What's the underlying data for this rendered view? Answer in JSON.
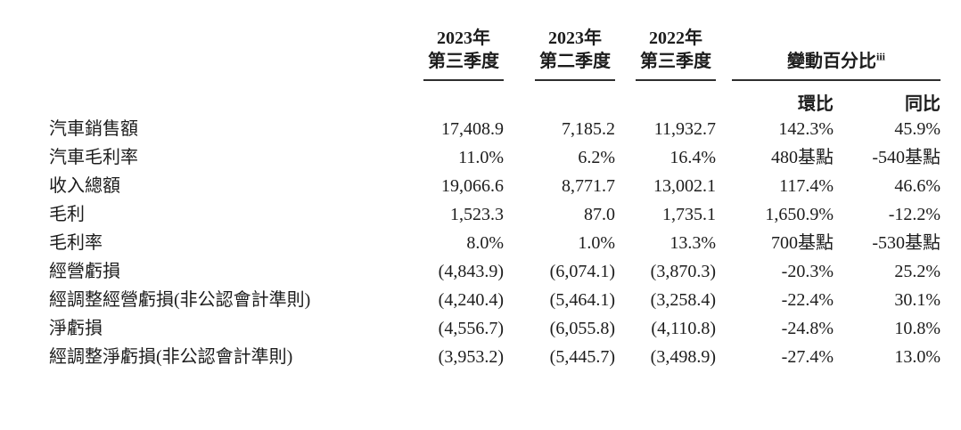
{
  "table": {
    "period_headers": [
      {
        "line1": "2023年",
        "line2": "第三季度"
      },
      {
        "line1": "2023年",
        "line2": "第二季度"
      },
      {
        "line1": "2022年",
        "line2": "第三季度"
      }
    ],
    "change_header": {
      "label": "變動百分比",
      "superscript": "iii",
      "sub_columns": [
        "環比",
        "同比"
      ]
    },
    "rows": [
      {
        "label": "汽車銷售額",
        "q3_2023": "17,408.9",
        "q2_2023": "7,185.2",
        "q3_2022": "11,932.7",
        "qoq": "142.3%",
        "yoy": "45.9%"
      },
      {
        "label": "汽車毛利率",
        "q3_2023": "11.0%",
        "q2_2023": "6.2%",
        "q3_2022": "16.4%",
        "qoq": "480基點",
        "yoy": "-540基點"
      },
      {
        "label": "收入總額",
        "q3_2023": "19,066.6",
        "q2_2023": "8,771.7",
        "q3_2022": "13,002.1",
        "qoq": "117.4%",
        "yoy": "46.6%"
      },
      {
        "label": "毛利",
        "q3_2023": "1,523.3",
        "q2_2023": "87.0",
        "q3_2022": "1,735.1",
        "qoq": "1,650.9%",
        "yoy": "-12.2%"
      },
      {
        "label": "毛利率",
        "q3_2023": "8.0%",
        "q2_2023": "1.0%",
        "q3_2022": "13.3%",
        "qoq": "700基點",
        "yoy": "-530基點"
      },
      {
        "label": "經營虧損",
        "q3_2023": "(4,843.9)",
        "q2_2023": "(6,074.1)",
        "q3_2022": "(3,870.3)",
        "qoq": "-20.3%",
        "yoy": "25.2%"
      },
      {
        "label": "經調整經營虧損(非公認會計準則)",
        "q3_2023": "(4,240.4)",
        "q2_2023": "(5,464.1)",
        "q3_2022": "(3,258.4)",
        "qoq": "-22.4%",
        "yoy": "30.1%"
      },
      {
        "label": "淨虧損",
        "q3_2023": "(4,556.7)",
        "q2_2023": "(6,055.8)",
        "q3_2022": "(4,110.8)",
        "qoq": "-24.8%",
        "yoy": "10.8%"
      },
      {
        "label": "經調整淨虧損(非公認會計準則)",
        "q3_2023": "(3,953.2)",
        "q2_2023": "(5,445.7)",
        "q3_2022": "(3,498.9)",
        "qoq": "-27.4%",
        "yoy": "13.0%"
      }
    ]
  }
}
